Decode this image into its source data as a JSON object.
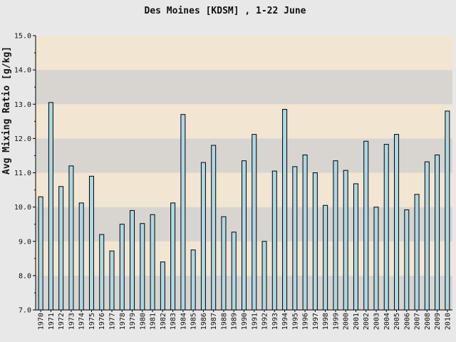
{
  "chart_data": {
    "type": "bar",
    "title": "Des Moines [KDSM] , 1-22 June",
    "xlabel": "",
    "ylabel": "Avg Mixing Ratio [g/kg]",
    "ylim": [
      7.0,
      15.0
    ],
    "yticks": [
      "7.0",
      "8.0",
      "9.0",
      "10.0",
      "11.0",
      "12.0",
      "13.0",
      "14.0",
      "15.0"
    ],
    "grid": "alternating horizontal bands",
    "legend": "none",
    "colors": {
      "background": "#e8e8e8",
      "band_gray": "#d8d5d0",
      "band_tan": "#f2e5d2",
      "bar_fill": "#add8e6",
      "bar_stroke": "#000000"
    },
    "categories": [
      "1970",
      "1971",
      "1972",
      "1973",
      "1974",
      "1975",
      "1976",
      "1977",
      "1978",
      "1979",
      "1980",
      "1981",
      "1982",
      "1983",
      "1984",
      "1985",
      "1986",
      "1987",
      "1988",
      "1989",
      "1990",
      "1991",
      "1992",
      "1993",
      "1994",
      "1995",
      "1996",
      "1997",
      "1998",
      "1999",
      "2000",
      "2001",
      "2002",
      "2003",
      "2004",
      "2005",
      "2006",
      "2007",
      "2008",
      "2009",
      "2010"
    ],
    "values": [
      10.3,
      13.05,
      10.6,
      11.2,
      10.12,
      10.9,
      9.2,
      8.72,
      9.5,
      9.9,
      9.52,
      9.78,
      8.4,
      10.12,
      12.7,
      8.75,
      11.3,
      11.8,
      9.72,
      9.27,
      11.35,
      12.12,
      9.0,
      11.05,
      12.85,
      11.18,
      11.52,
      11.0,
      10.05,
      11.35,
      11.07,
      10.68,
      11.92,
      10.0,
      11.83,
      12.12,
      9.92,
      10.37,
      11.32,
      11.52,
      12.8
    ]
  }
}
